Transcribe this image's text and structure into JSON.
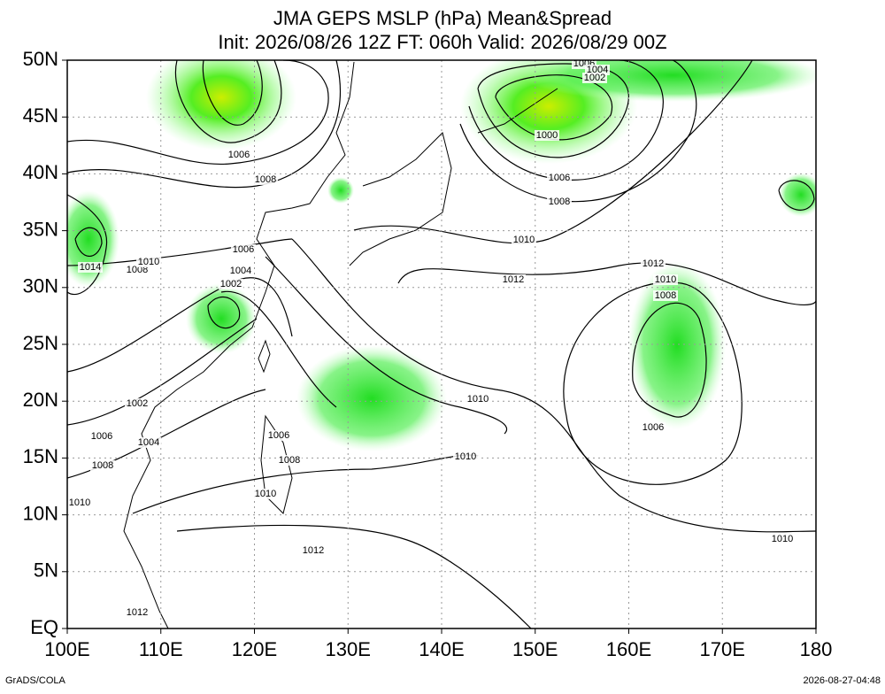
{
  "map": {
    "title": "JMA GEPS MSLP (hPa) Mean&Spread",
    "subtitle": "Init: 2026/08/26 12Z  FT: 060h  Valid: 2026/08/29 00Z",
    "lon_range": [
      100,
      180
    ],
    "lat_range": [
      0,
      50
    ],
    "lon_ticks": [
      {
        "value": 100,
        "label": "100E"
      },
      {
        "value": 110,
        "label": "110E"
      },
      {
        "value": 120,
        "label": "120E"
      },
      {
        "value": 130,
        "label": "130E"
      },
      {
        "value": 140,
        "label": "140E"
      },
      {
        "value": 150,
        "label": "150E"
      },
      {
        "value": 160,
        "label": "160E"
      },
      {
        "value": 170,
        "label": "170E"
      },
      180
    ],
    "lat_ticks": [
      {
        "value": 0,
        "label": "EQ"
      },
      {
        "value": 5,
        "label": "5N"
      },
      {
        "value": 10,
        "label": "10N"
      },
      {
        "value": 15,
        "label": "15N"
      },
      {
        "value": 20,
        "label": "20N"
      },
      {
        "value": 25,
        "label": "25N"
      },
      {
        "value": 30,
        "label": "30N"
      },
      {
        "value": 35,
        "label": "35N"
      },
      {
        "value": 40,
        "label": "40N"
      },
      {
        "value": 45,
        "label": "45N"
      },
      {
        "value": 50,
        "label": "50N"
      }
    ],
    "contour_labels": [
      1006,
      1008,
      1006,
      1004,
      1002,
      1000,
      1006,
      1008,
      1010,
      1012,
      1012,
      1010,
      1008,
      1006,
      1010,
      1010,
      1010,
      1014,
      1008,
      1010,
      1006,
      1004,
      1002,
      1002,
      1006,
      1004,
      1008,
      1006,
      1008,
      1010,
      1010,
      1012,
      1012
    ]
  },
  "footer": {
    "left": "GrADS/COLA",
    "right": "2026-08-27-04:48"
  }
}
